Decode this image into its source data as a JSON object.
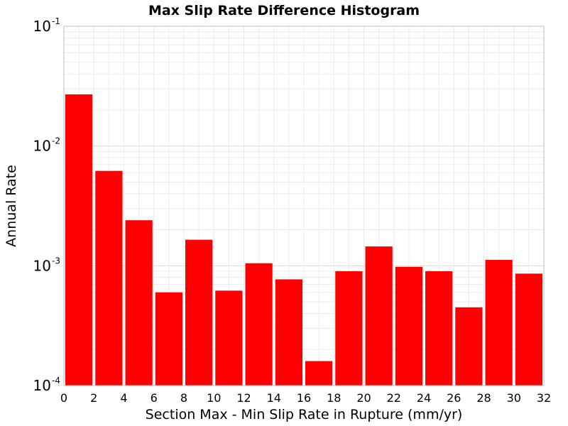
{
  "chart_data": {
    "type": "bar",
    "title": "Max Slip Rate Difference Histogram",
    "xlabel": "Section Max - Min Slip Rate in Rupture (mm/yr)",
    "ylabel": "Annual Rate",
    "xlim": [
      0,
      32
    ],
    "ylim": [
      0.0001,
      0.1
    ],
    "yscale": "log",
    "grid": true,
    "bar_color": "#ff0000",
    "bin_width": 2,
    "x_ticks": [
      "0",
      "2",
      "4",
      "6",
      "8",
      "10",
      "12",
      "14",
      "16",
      "18",
      "20",
      "22",
      "24",
      "26",
      "28",
      "30",
      "32"
    ],
    "y_ticks": [
      {
        "base": "10",
        "exp": "-1",
        "value": 0.1
      },
      {
        "base": "10",
        "exp": "-2",
        "value": 0.01
      },
      {
        "base": "10",
        "exp": "-3",
        "value": 0.001
      },
      {
        "base": "10",
        "exp": "-4",
        "value": 0.0001
      }
    ],
    "bins": [
      {
        "x_start": 0,
        "x_end": 2,
        "value": 0.027
      },
      {
        "x_start": 2,
        "x_end": 4,
        "value": 0.0062
      },
      {
        "x_start": 4,
        "x_end": 6,
        "value": 0.0024
      },
      {
        "x_start": 6,
        "x_end": 8,
        "value": 0.0006
      },
      {
        "x_start": 8,
        "x_end": 10,
        "value": 0.00165
      },
      {
        "x_start": 10,
        "x_end": 12,
        "value": 0.00062
      },
      {
        "x_start": 12,
        "x_end": 14,
        "value": 0.00105
      },
      {
        "x_start": 14,
        "x_end": 16,
        "value": 0.00077
      },
      {
        "x_start": 16,
        "x_end": 18,
        "value": 0.00016
      },
      {
        "x_start": 18,
        "x_end": 20,
        "value": 0.0009
      },
      {
        "x_start": 20,
        "x_end": 22,
        "value": 0.00145
      },
      {
        "x_start": 22,
        "x_end": 24,
        "value": 0.00098
      },
      {
        "x_start": 24,
        "x_end": 26,
        "value": 0.0009
      },
      {
        "x_start": 26,
        "x_end": 28,
        "value": 0.00045
      },
      {
        "x_start": 28,
        "x_end": 30,
        "value": 0.00112
      },
      {
        "x_start": 30,
        "x_end": 32,
        "value": 0.00086
      }
    ]
  }
}
